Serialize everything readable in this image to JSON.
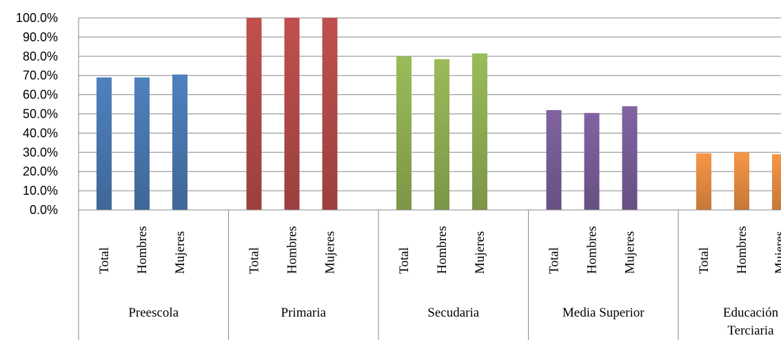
{
  "chart_data": {
    "type": "bar",
    "ylim": [
      0,
      100
    ],
    "ytick_labels": [
      "0.0%",
      "10.0%",
      "20.0%",
      "30.0%",
      "40.0%",
      "50.0%",
      "60.0%",
      "70.0%",
      "80.0%",
      "90.0%",
      "100.0%"
    ],
    "grid": true,
    "groups": [
      {
        "name": "Preescola",
        "color": "#4f81bd",
        "bars": [
          {
            "label": "Total",
            "value": 69.0
          },
          {
            "label": "Hombres",
            "value": 69.0
          },
          {
            "label": "Mujeres",
            "value": 70.5
          }
        ]
      },
      {
        "name": "Primaria",
        "color": "#c0504d",
        "bars": [
          {
            "label": "Total",
            "value": 100.0
          },
          {
            "label": "Hombres",
            "value": 100.0
          },
          {
            "label": "Mujeres",
            "value": 100.0
          }
        ]
      },
      {
        "name": "Secudaria",
        "color": "#9bbb59",
        "bars": [
          {
            "label": "Total",
            "value": 80.0
          },
          {
            "label": "Hombres",
            "value": 78.5
          },
          {
            "label": "Mujeres",
            "value": 81.5
          }
        ]
      },
      {
        "name": "Media Superior",
        "color": "#8064a2",
        "bars": [
          {
            "label": "Total",
            "value": 52.0
          },
          {
            "label": "Hombres",
            "value": 50.5
          },
          {
            "label": "Mujeres",
            "value": 54.0
          }
        ]
      },
      {
        "name_lines": [
          "Educación",
          "Terciaria"
        ],
        "color": "#f79646",
        "bars": [
          {
            "label": "Total",
            "value": 29.5
          },
          {
            "label": "Hombres",
            "value": 30.0
          },
          {
            "label": "Mujeres",
            "value": 29.0
          }
        ]
      }
    ]
  }
}
